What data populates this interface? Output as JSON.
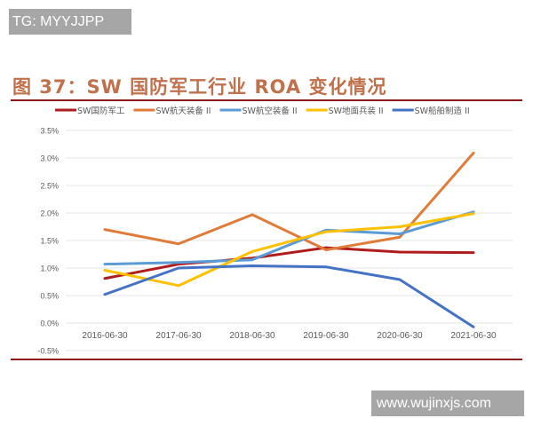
{
  "watermarks": {
    "top_left": "TG: MYYJJPP",
    "bottom_right": "www.wujinxjs.com"
  },
  "chart_data": {
    "type": "line",
    "title": "图 37：SW 国防军工行业 ROA 变化情况",
    "xlabel": "",
    "ylabel": "",
    "categories": [
      "2016-06-30",
      "2017-06-30",
      "2018-06-30",
      "2019-06-30",
      "2020-06-30",
      "2021-06-30"
    ],
    "y_ticks": [
      "-0.5%",
      "0.0%",
      "0.5%",
      "1.0%",
      "1.5%",
      "2.0%",
      "2.5%",
      "3.0%",
      "3.5%"
    ],
    "ylim": [
      -0.5,
      3.5
    ],
    "y_unit": "%",
    "grid": true,
    "legend_position": "top",
    "series": [
      {
        "name": "SW国防军工",
        "color": "#b01c1c",
        "values": [
          0.81,
          1.07,
          1.18,
          1.37,
          1.29,
          1.28
        ]
      },
      {
        "name": "SW航天装备 II",
        "color": "#e07b39",
        "values": [
          1.7,
          1.44,
          1.97,
          1.33,
          1.56,
          3.09
        ]
      },
      {
        "name": "SW航空装备 II",
        "color": "#5b9bd5",
        "values": [
          1.07,
          1.1,
          1.15,
          1.69,
          1.62,
          2.02
        ]
      },
      {
        "name": "SW地面兵装 II",
        "color": "#ffc000",
        "values": [
          0.96,
          0.68,
          1.3,
          1.66,
          1.75,
          1.99
        ]
      },
      {
        "name": "SW船舶制造 II",
        "color": "#4472c4",
        "values": [
          0.52,
          1.0,
          1.04,
          1.02,
          0.79,
          -0.07
        ]
      }
    ]
  }
}
